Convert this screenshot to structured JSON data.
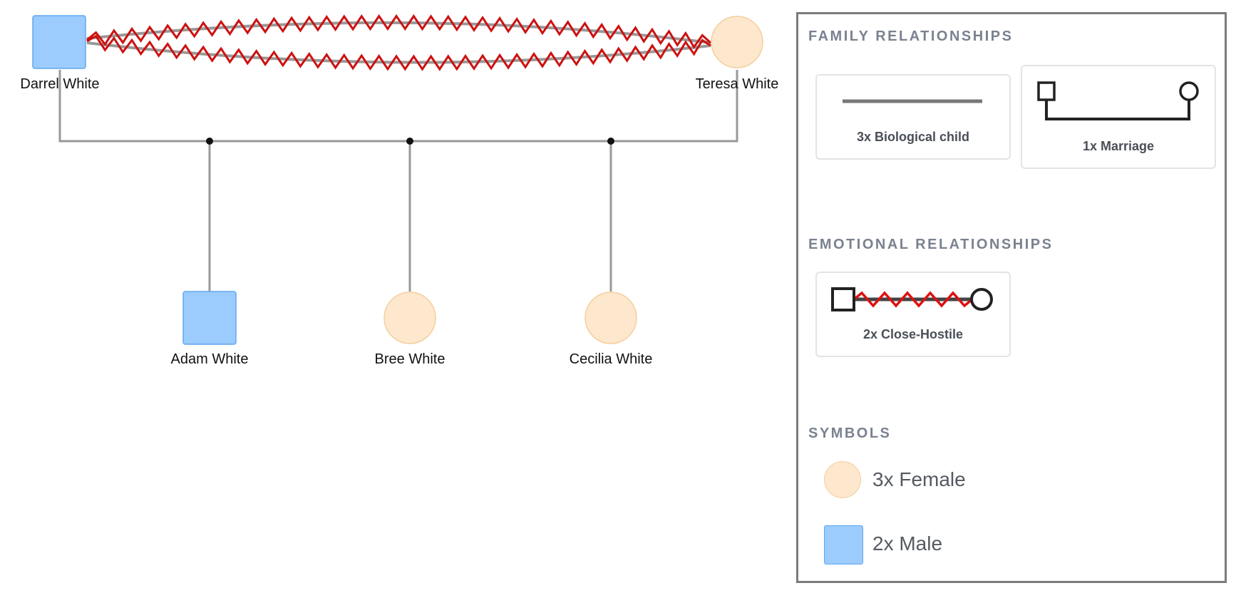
{
  "people": [
    {
      "id": "darrel",
      "name": "Darrel White",
      "gender": "male"
    },
    {
      "id": "teresa",
      "name": "Teresa White",
      "gender": "female"
    },
    {
      "id": "adam",
      "name": "Adam White",
      "gender": "male"
    },
    {
      "id": "bree",
      "name": "Bree White",
      "gender": "female"
    },
    {
      "id": "cecilia",
      "name": "Cecilia White",
      "gender": "female"
    }
  ],
  "relationships": {
    "marriage": [
      "darrel",
      "teresa"
    ],
    "children": [
      "adam",
      "bree",
      "cecilia"
    ],
    "close_hostile": [
      [
        "darrel",
        "teresa"
      ],
      [
        "darrel",
        "teresa"
      ]
    ]
  },
  "colors": {
    "male_fill": "#9ccbfd",
    "male_stroke": "#5ea8ef",
    "female_fill": "#fde7cd",
    "female_stroke": "#f5cf9f",
    "line": "#999999",
    "hostile": "#cc1111"
  },
  "legend": {
    "family_title": "FAMILY RELATIONSHIPS",
    "family_items": [
      {
        "icon": "biological-child-line-icon",
        "label": "3x Biological child"
      },
      {
        "icon": "marriage-icon",
        "label": "1x Marriage"
      }
    ],
    "emotional_title": "EMOTIONAL RELATIONSHIPS",
    "emotional_items": [
      {
        "icon": "close-hostile-icon",
        "label": "2x Close-Hostile"
      }
    ],
    "symbols_title": "SYMBOLS",
    "symbols": [
      {
        "icon": "female-symbol-icon",
        "label": "3x Female"
      },
      {
        "icon": "male-symbol-icon",
        "label": "2x Male"
      }
    ]
  }
}
